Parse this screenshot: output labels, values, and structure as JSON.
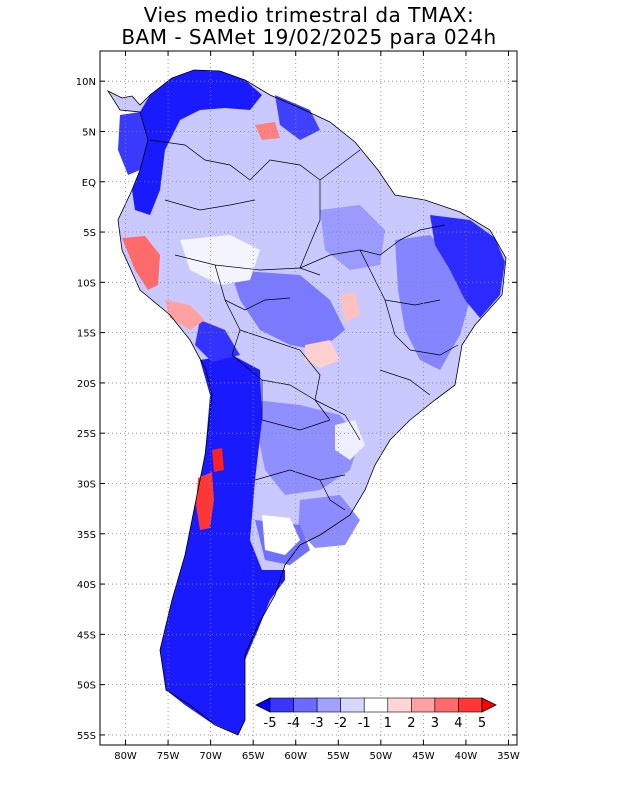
{
  "title_line1": "Vies medio trimestral da TMAX:",
  "title_line2": "BAM - SAMet 19/02/2025  para 024h",
  "map": {
    "region": "South America",
    "lon_range": [
      -83,
      -34
    ],
    "lat_range": [
      -56,
      13
    ],
    "lat_ticks": [
      {
        "value": 10,
        "label": "10N"
      },
      {
        "value": 5,
        "label": "5N"
      },
      {
        "value": 0,
        "label": "EQ"
      },
      {
        "value": -5,
        "label": "5S"
      },
      {
        "value": -10,
        "label": "10S"
      },
      {
        "value": -15,
        "label": "15S"
      },
      {
        "value": -20,
        "label": "20S"
      },
      {
        "value": -25,
        "label": "25S"
      },
      {
        "value": -30,
        "label": "30S"
      },
      {
        "value": -35,
        "label": "35S"
      },
      {
        "value": -40,
        "label": "40S"
      },
      {
        "value": -45,
        "label": "45S"
      },
      {
        "value": -50,
        "label": "50S"
      },
      {
        "value": -55,
        "label": "55S"
      }
    ],
    "lon_ticks": [
      {
        "value": -80,
        "label": "80W"
      },
      {
        "value": -75,
        "label": "75W"
      },
      {
        "value": -70,
        "label": "70W"
      },
      {
        "value": -65,
        "label": "65W"
      },
      {
        "value": -60,
        "label": "60W"
      },
      {
        "value": -55,
        "label": "55W"
      },
      {
        "value": -50,
        "label": "50W"
      },
      {
        "value": -45,
        "label": "45W"
      },
      {
        "value": -40,
        "label": "40W"
      },
      {
        "value": -35,
        "label": "35W"
      }
    ],
    "grid": "dotted"
  },
  "colorbar": {
    "labels": [
      "-5",
      "-4",
      "-3",
      "-2",
      "-1",
      "1",
      "2",
      "3",
      "4",
      "5"
    ],
    "colors": [
      "#0000ff",
      "#3636ff",
      "#6b6bff",
      "#a1a1ff",
      "#d6d6ff",
      "#ffffff",
      "#ffd6d6",
      "#ffa1a1",
      "#ff6b6b",
      "#ff3636",
      "#ff0000"
    ]
  },
  "colors": {
    "strong_negative": "#1a1aff",
    "medium_negative": "#7a7aff",
    "light_negative": "#c8c8ff",
    "neutral": "#ffffff",
    "positive": "#ff3636"
  }
}
